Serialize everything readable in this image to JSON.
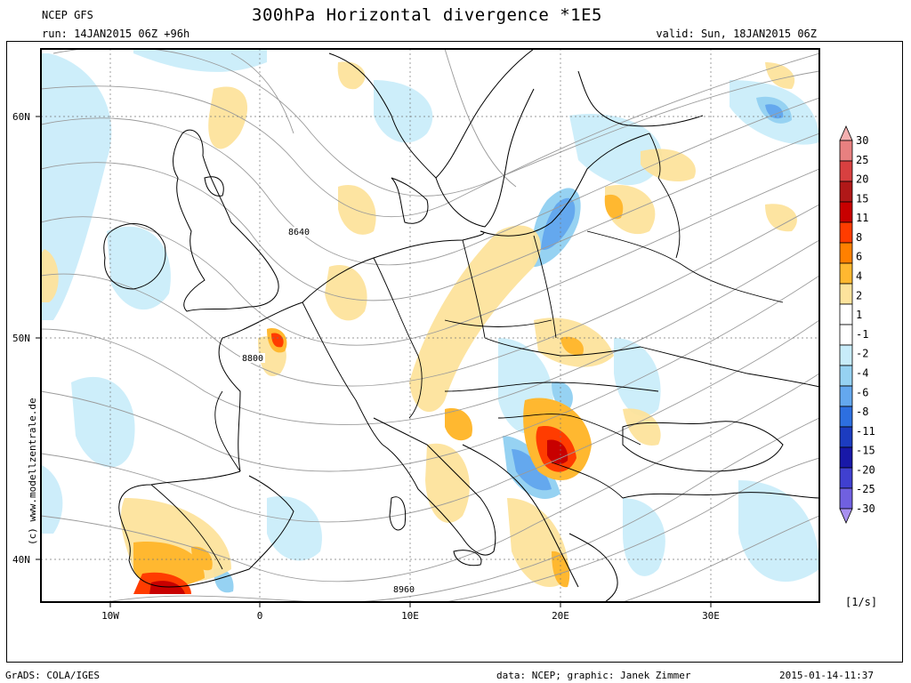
{
  "header": {
    "model": "NCEP GFS",
    "run": "run: 14JAN2015 06Z +96h",
    "title": "300hPa Horizontal divergence *1E5",
    "valid": "valid: Sun, 18JAN2015 06Z"
  },
  "credit": "(c) www.modellzentrale.de",
  "footer": {
    "left": "GrADS: COLA/IGES",
    "middle": "data: NCEP; graphic: Janek Zimmer",
    "right": "2015-01-14-11:37"
  },
  "map": {
    "lat_labels": [
      "60N",
      "50N",
      "40N"
    ],
    "lon_labels": [
      "10W",
      "0",
      "10E",
      "20E",
      "30E"
    ],
    "contour_labels": [
      "8640",
      "8800",
      "8960"
    ],
    "coast_color": "#000000",
    "contour_color": "#9a9a9a"
  },
  "colorbar": {
    "unit": "[1/s]",
    "levels": [
      "30",
      "25",
      "20",
      "15",
      "11",
      "8",
      "6",
      "4",
      "2",
      "1",
      "-1",
      "-2",
      "-4",
      "-6",
      "-8",
      "-11",
      "-15",
      "-20",
      "-25",
      "-30"
    ],
    "colors": [
      "#f4b0b0",
      "#e88080",
      "#d84040",
      "#b01818",
      "#c80000",
      "#ff3c00",
      "#ff8000",
      "#ffb830",
      "#fde39c",
      "#ffffff",
      "#ffffff",
      "#c8ecfa",
      "#96d2f2",
      "#64a8ee",
      "#2d6fe0",
      "#1c3cc0",
      "#1818a8",
      "#4040d0",
      "#7060e0",
      "#a890f0"
    ]
  }
}
